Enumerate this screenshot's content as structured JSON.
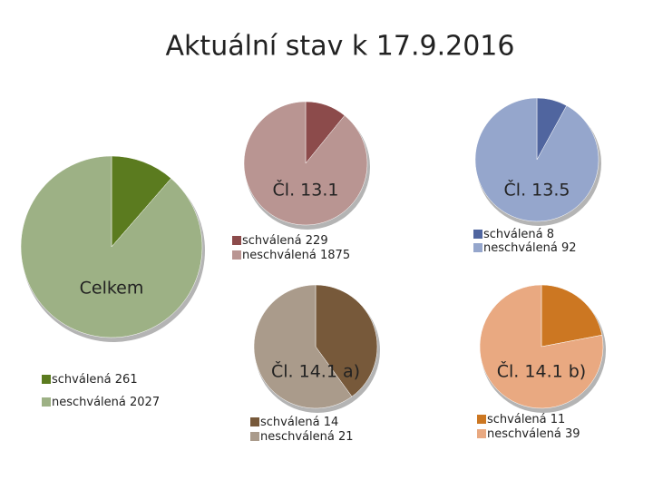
{
  "title": "Aktuální stav k 17.9.2016",
  "chart_data": [
    {
      "type": "pie",
      "title": "Celkem",
      "categories": [
        "schválená",
        "neschválená"
      ],
      "values": [
        261,
        2027
      ],
      "colors": [
        "#5b7b1f",
        "#9db185"
      ]
    },
    {
      "type": "pie",
      "title": "Čl. 13.1",
      "categories": [
        "schválená",
        "neschválená"
      ],
      "values": [
        229,
        1875
      ],
      "colors": [
        "#8c4b4b",
        "#b99592"
      ]
    },
    {
      "type": "pie",
      "title": "Čl. 13.5",
      "categories": [
        "schválená",
        "neschválená"
      ],
      "values": [
        8,
        92
      ],
      "colors": [
        "#50659f",
        "#95a6cc"
      ]
    },
    {
      "type": "pie",
      "title": "Čl. 14.1 a)",
      "categories": [
        "schválená",
        "neschválená"
      ],
      "values": [
        14,
        21
      ],
      "colors": [
        "#77593a",
        "#aa9b8b"
      ]
    },
    {
      "type": "pie",
      "title": "Čl. 14.1 b)",
      "categories": [
        "schválená",
        "neschválená"
      ],
      "values": [
        11,
        39
      ],
      "colors": [
        "#cc7722",
        "#e9a981"
      ]
    }
  ]
}
